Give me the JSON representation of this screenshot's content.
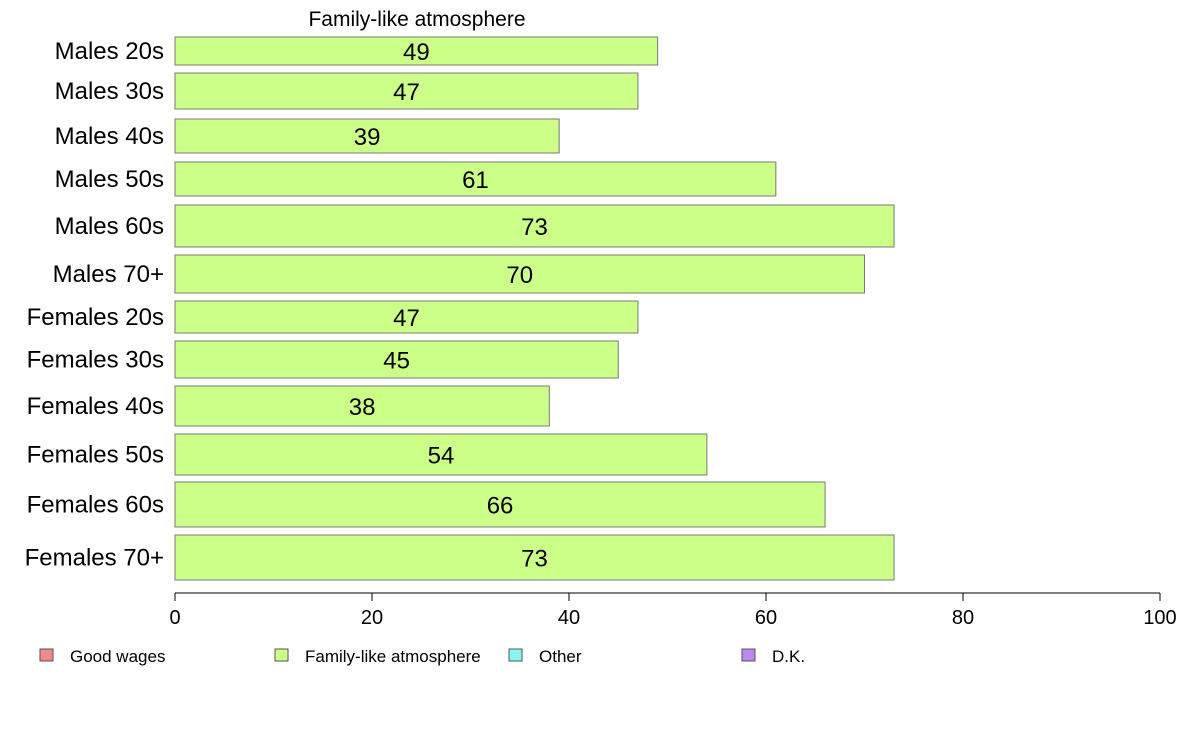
{
  "chart_data": {
    "type": "bar",
    "orientation": "horizontal",
    "title": "Family-like atmosphere",
    "categories": [
      "Males 20s",
      "Males 30s",
      "Males 40s",
      "Males 50s",
      "Males 60s",
      "Males 70+",
      "Females 20s",
      "Females 30s",
      "Females 40s",
      "Females 50s",
      "Females 60s",
      "Females 70+"
    ],
    "series": [
      {
        "name": "Family-like atmosphere",
        "color": "#ccff88",
        "values": [
          49,
          47,
          39,
          61,
          73,
          70,
          47,
          45,
          38,
          54,
          66,
          73
        ]
      }
    ],
    "xlim": [
      0,
      100
    ],
    "xticks": [
      0,
      20,
      40,
      60,
      80,
      100
    ],
    "grid": false,
    "legend_placement": "bottom",
    "legend": [
      {
        "label": "Good wages",
        "color": "#f08a8a"
      },
      {
        "label": "Family-like atmosphere",
        "color": "#ccff88"
      },
      {
        "label": "Other",
        "color": "#88f5f5"
      },
      {
        "label": "D.K.",
        "color": "#bb88f0"
      }
    ]
  }
}
